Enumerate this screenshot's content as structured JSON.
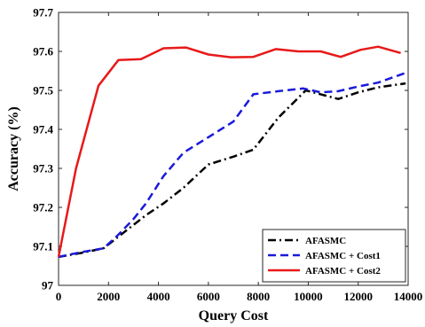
{
  "chart_data": {
    "type": "line",
    "xlabel": "Query Cost",
    "ylabel": "Accuracy (%)",
    "xlim": [
      0,
      14000
    ],
    "ylim": [
      97.0,
      97.7
    ],
    "xticks": [
      0,
      2000,
      4000,
      6000,
      8000,
      10000,
      12000,
      14000
    ],
    "xtick_labels": [
      "0",
      "2000",
      "4000",
      "6000",
      "8000",
      "10000",
      "12000",
      "14000"
    ],
    "yticks": [
      97.0,
      97.1,
      97.2,
      97.3,
      97.4,
      97.5,
      97.6,
      97.7
    ],
    "ytick_labels": [
      "97",
      "97.1",
      "97.2",
      "97.3",
      "97.4",
      "97.5",
      "97.6",
      "97.7"
    ],
    "grid": false,
    "legend_position": "bottom-right",
    "series": [
      {
        "name": "AFASMC",
        "color": "#000000",
        "dash": "dash-dot",
        "x": [
          0,
          900,
          1800,
          2700,
          3500,
          4200,
          5000,
          6000,
          7000,
          7800,
          8800,
          9900,
          10500,
          11200,
          12000,
          12800,
          13900
        ],
        "y": [
          97.073,
          97.083,
          97.095,
          97.14,
          97.18,
          97.21,
          97.25,
          97.31,
          97.33,
          97.348,
          97.43,
          97.5,
          97.49,
          97.478,
          97.495,
          97.508,
          97.518
        ]
      },
      {
        "name": "AFASMC + Cost1",
        "color": "#1a1adc",
        "dash": "dashed",
        "x": [
          0,
          900,
          1800,
          2400,
          3000,
          3500,
          4200,
          5000,
          6000,
          7000,
          7800,
          8800,
          9800,
          10500,
          11200,
          12000,
          12800,
          13900
        ],
        "y": [
          97.073,
          97.085,
          97.095,
          97.13,
          97.17,
          97.21,
          97.28,
          97.34,
          97.38,
          97.42,
          97.49,
          97.498,
          97.505,
          97.495,
          97.498,
          97.51,
          97.52,
          97.545
        ]
      },
      {
        "name": "AFASMC + Cost2",
        "color": "#e81919",
        "dash": "solid",
        "x": [
          0,
          700,
          1600,
          2400,
          3300,
          4200,
          5100,
          6000,
          6900,
          7800,
          8700,
          9600,
          10500,
          11300,
          12100,
          12800,
          13700
        ],
        "y": [
          97.073,
          97.3,
          97.512,
          97.578,
          97.58,
          97.608,
          97.61,
          97.592,
          97.585,
          97.586,
          97.606,
          97.6,
          97.6,
          97.586,
          97.604,
          97.612,
          97.596
        ]
      }
    ]
  }
}
